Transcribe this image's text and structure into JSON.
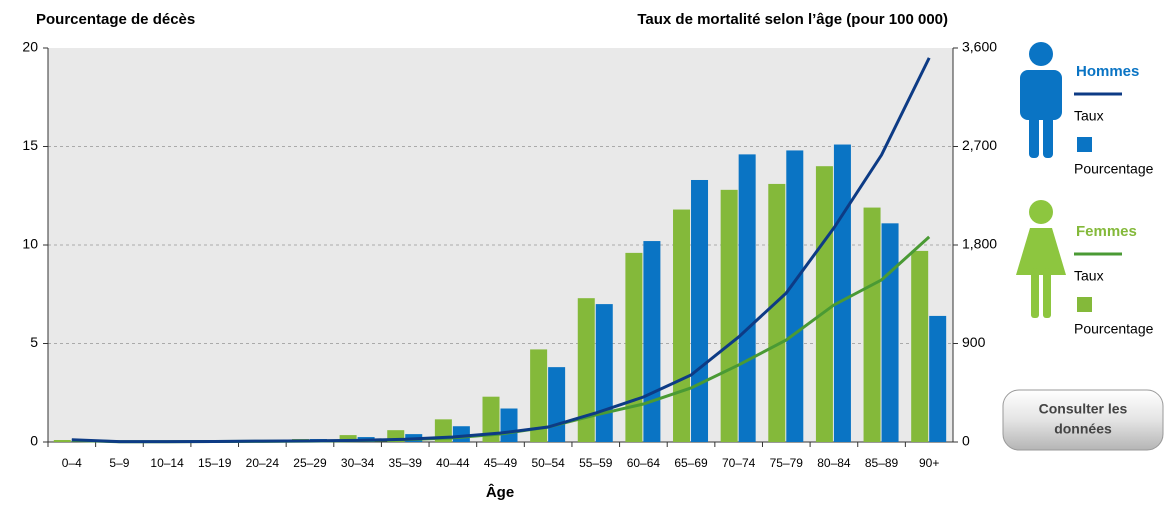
{
  "chart_data": {
    "type": "bar",
    "title": "Pourcentage de décès",
    "y2_title": "Taux de mortalité selon l’âge (pour 100  000)",
    "x_label": "Âge",
    "categories": [
      "0–4",
      "5–9",
      "10–14",
      "15–19",
      "20–24",
      "25–29",
      "30–34",
      "35–39",
      "40–44",
      "45–49",
      "50–54",
      "55–59",
      "60–64",
      "65–69",
      "70–74",
      "75–79",
      "80–84",
      "85–89",
      "90+"
    ],
    "ylim": [
      0,
      20
    ],
    "yticks": [
      0,
      5,
      10,
      15,
      20
    ],
    "y2lim": [
      0,
      3600
    ],
    "y2ticks": [
      0,
      900,
      {
        "value": 1800,
        "label": "1,800"
      },
      {
        "value": 2700,
        "label": "2,700"
      },
      {
        "value": 3600,
        "label": "3,600"
      }
    ],
    "grid": true,
    "groups": [
      {
        "name": "Femmes",
        "color": "#84b93a",
        "line_color": "#4a9a34",
        "icon_color": "#8dc63f",
        "series": [
          {
            "name": "Taux",
            "type": "line",
            "axis": "y2",
            "values": [
              15,
              2,
              2,
              4,
              6,
              8,
              13,
              22,
              38,
              73,
              137,
              247,
              347,
              494,
              704,
              932,
              1252,
              1481,
              1874
            ]
          },
          {
            "name": "Pourcentage",
            "type": "bar",
            "values": [
              0.1,
              0.05,
              0.05,
              0.1,
              0.1,
              0.15,
              0.35,
              0.6,
              1.15,
              2.3,
              4.7,
              7.3,
              9.6,
              11.8,
              12.8,
              13.1,
              14.0,
              11.9,
              9.7
            ]
          }
        ]
      },
      {
        "name": "Hommes",
        "color": "#0a74c4",
        "line_color": "#0d3b85",
        "icon_color": "#0a74c4",
        "series": [
          {
            "name": "Taux",
            "type": "line",
            "axis": "y2",
            "values": [
              20,
              3,
              3,
              5,
              8,
              10,
              15,
              25,
              46,
              82,
              137,
              265,
              411,
              612,
              960,
              1362,
              1956,
              2623,
              3510
            ]
          },
          {
            "name": "Pourcentage",
            "type": "bar",
            "values": [
              0.05,
              0.05,
              0.05,
              0.05,
              0.1,
              0.15,
              0.25,
              0.4,
              0.8,
              1.7,
              3.8,
              7.0,
              10.2,
              13.3,
              14.6,
              14.8,
              15.1,
              11.1,
              6.4
            ]
          }
        ]
      }
    ]
  },
  "button": {
    "lines": [
      "Consulter les",
      "données"
    ]
  }
}
